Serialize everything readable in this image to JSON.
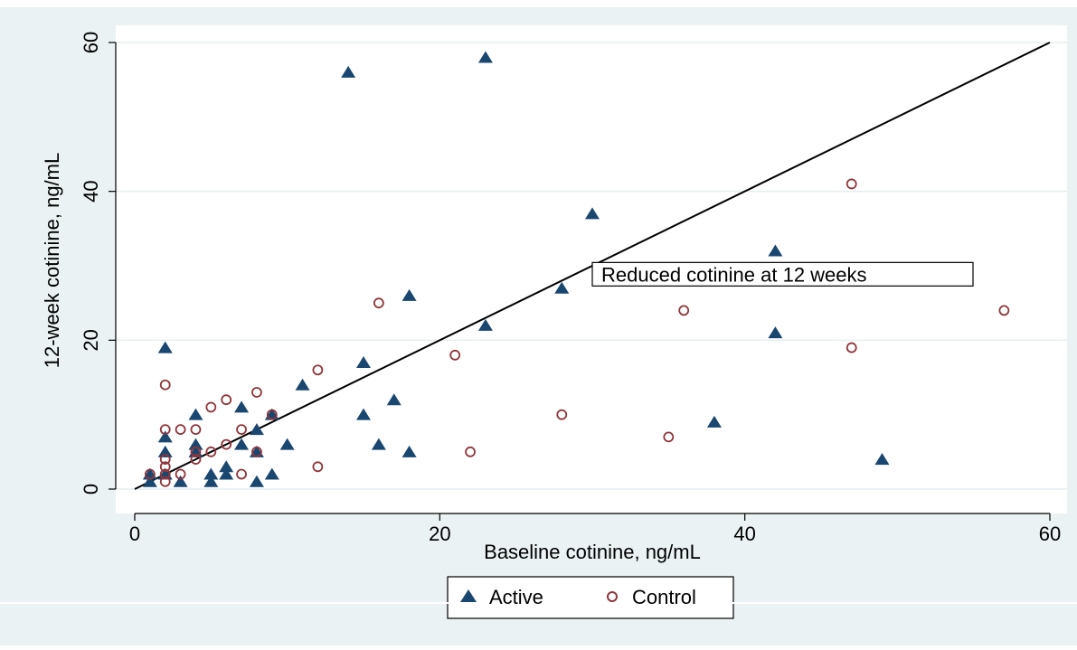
{
  "chart_data": {
    "type": "scatter",
    "title": "",
    "xlabel": "Baseline cotinine, ng/mL",
    "ylabel": "12-week cotinine, ng/mL",
    "xlim": [
      0,
      60
    ],
    "ylim": [
      0,
      60
    ],
    "x_ticks": [
      "0",
      "20",
      "40",
      "60"
    ],
    "y_ticks": [
      "0",
      "20",
      "40",
      "60"
    ],
    "grid": true,
    "legend_position": "bottom",
    "reference_line": {
      "from": [
        0,
        0
      ],
      "to": [
        60,
        60
      ]
    },
    "annotation": {
      "text": "Reduced cotinine at 12 weeks",
      "x": 28.5,
      "y": 28.5
    },
    "series": [
      {
        "name": "Active",
        "marker": "triangle",
        "color": "#1a476f",
        "points": [
          [
            1,
            2
          ],
          [
            1,
            1
          ],
          [
            2,
            19
          ],
          [
            2,
            7
          ],
          [
            2,
            5
          ],
          [
            2,
            2
          ],
          [
            3,
            1
          ],
          [
            4,
            10
          ],
          [
            4,
            6
          ],
          [
            4,
            5
          ],
          [
            5,
            2
          ],
          [
            5,
            1
          ],
          [
            6,
            3
          ],
          [
            6,
            2
          ],
          [
            7,
            11
          ],
          [
            7,
            6
          ],
          [
            8,
            8
          ],
          [
            8,
            5
          ],
          [
            8,
            1
          ],
          [
            9,
            10
          ],
          [
            9,
            2
          ],
          [
            10,
            6
          ],
          [
            11,
            14
          ],
          [
            14,
            56
          ],
          [
            15,
            17
          ],
          [
            15,
            10
          ],
          [
            16,
            6
          ],
          [
            17,
            12
          ],
          [
            18,
            26
          ],
          [
            18,
            5
          ],
          [
            23,
            58
          ],
          [
            23,
            22
          ],
          [
            28,
            27
          ],
          [
            30,
            37
          ],
          [
            38,
            9
          ],
          [
            42,
            32
          ],
          [
            42,
            21
          ],
          [
            49,
            4
          ]
        ]
      },
      {
        "name": "Control",
        "marker": "hollow-circle",
        "color": "#90353b",
        "points": [
          [
            1,
            2
          ],
          [
            2,
            14
          ],
          [
            2,
            8
          ],
          [
            2,
            4
          ],
          [
            2,
            3
          ],
          [
            2,
            2
          ],
          [
            2,
            1
          ],
          [
            3,
            8
          ],
          [
            3,
            2
          ],
          [
            4,
            8
          ],
          [
            4,
            5
          ],
          [
            4,
            4
          ],
          [
            5,
            11
          ],
          [
            5,
            5
          ],
          [
            6,
            12
          ],
          [
            6,
            6
          ],
          [
            7,
            8
          ],
          [
            7,
            2
          ],
          [
            8,
            13
          ],
          [
            8,
            5
          ],
          [
            9,
            10
          ],
          [
            12,
            16
          ],
          [
            12,
            3
          ],
          [
            16,
            25
          ],
          [
            21,
            18
          ],
          [
            22,
            5
          ],
          [
            28,
            10
          ],
          [
            35,
            7
          ],
          [
            36,
            24
          ],
          [
            47,
            41
          ],
          [
            47,
            19
          ],
          [
            57,
            24
          ]
        ]
      }
    ]
  }
}
